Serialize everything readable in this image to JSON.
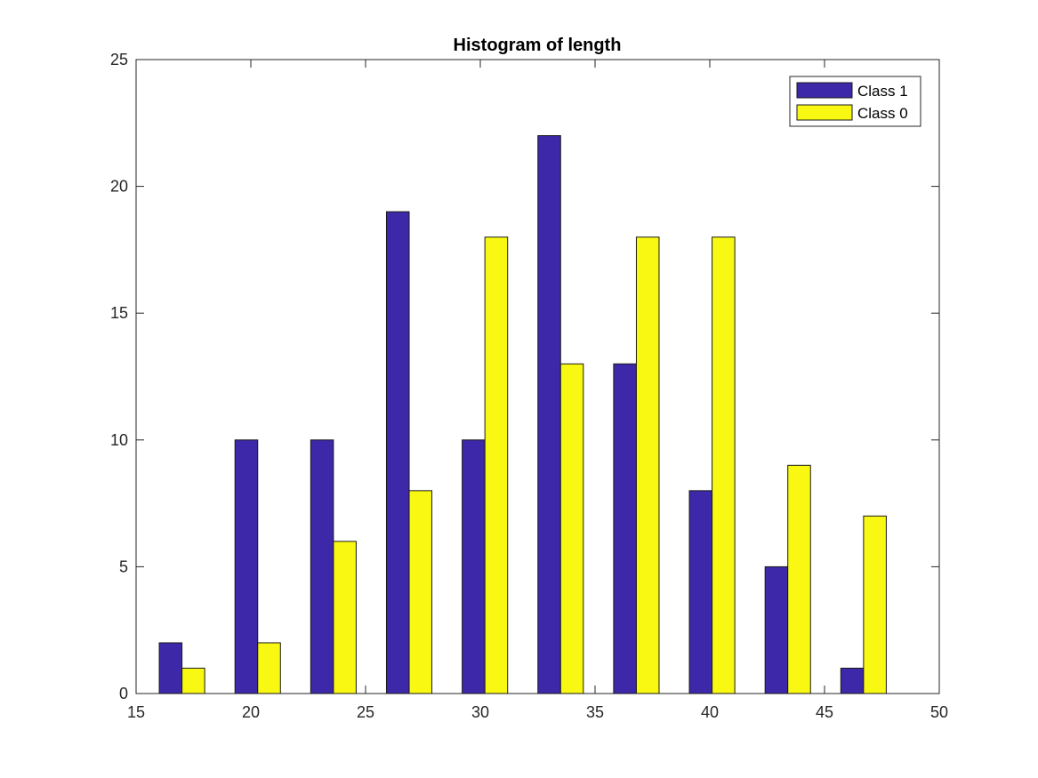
{
  "chart_data": {
    "type": "bar",
    "title": "Histogram of length",
    "xlabel": "",
    "ylabel": "",
    "xlim": [
      15,
      50
    ],
    "ylim": [
      0,
      25
    ],
    "xticks": [
      "15",
      "20",
      "25",
      "30",
      "35",
      "40",
      "45",
      "50"
    ],
    "yticks": [
      "0",
      "5",
      "10",
      "15",
      "20",
      "25"
    ],
    "bin_centers": [
      17,
      20.3,
      23.6,
      26.9,
      30.2,
      33.5,
      36.8,
      40.1,
      43.4,
      46.7
    ],
    "series": [
      {
        "name": "Class 1",
        "color": "#3c28a8",
        "values": [
          2,
          10,
          10,
          19,
          10,
          22,
          13,
          8,
          5,
          1
        ]
      },
      {
        "name": "Class 0",
        "color": "#f8f812",
        "values": [
          1,
          2,
          6,
          8,
          18,
          13,
          18,
          18,
          9,
          7
        ]
      }
    ],
    "grid": false,
    "legend_position": "top-right"
  }
}
